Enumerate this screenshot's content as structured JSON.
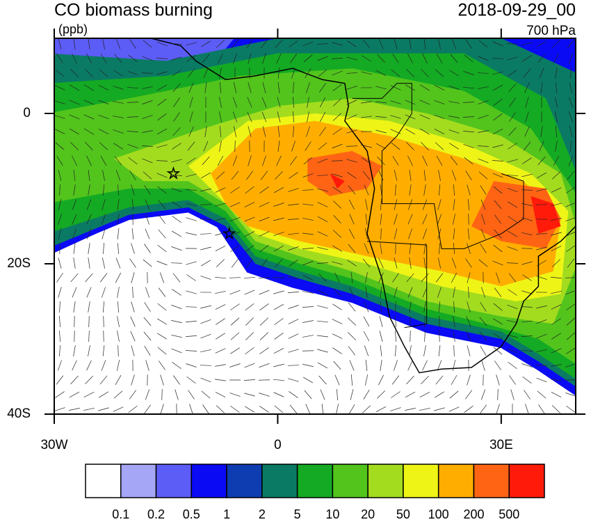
{
  "header": {
    "title": "CO biomass burning",
    "units": "(ppb)",
    "date": "2018-09-29_00",
    "level": "700 hPa"
  },
  "map": {
    "lonlim": [
      -30,
      40
    ],
    "latlim": [
      -40,
      10
    ],
    "lat_ticks": [
      {
        "value": 0,
        "label": "0"
      },
      {
        "value": -20,
        "label": "20S"
      },
      {
        "value": -40,
        "label": "40S"
      }
    ],
    "lon_ticks": [
      {
        "value": -30,
        "label": "30W"
      },
      {
        "value": 0,
        "label": "0"
      },
      {
        "value": 30,
        "label": "30E"
      }
    ]
  },
  "colorbar": {
    "colors": [
      "#ffffff",
      "#a6a6f7",
      "#5c5cf7",
      "#0a0af5",
      "#0d3db0",
      "#0a7a64",
      "#14aa23",
      "#52c41c",
      "#a3dc1e",
      "#eef516",
      "#ffae00",
      "#ff6414",
      "#ff1a0a"
    ],
    "labels": [
      0.1,
      0.2,
      0.5,
      1,
      2,
      5,
      10,
      20,
      50,
      100,
      200,
      500
    ]
  }
}
